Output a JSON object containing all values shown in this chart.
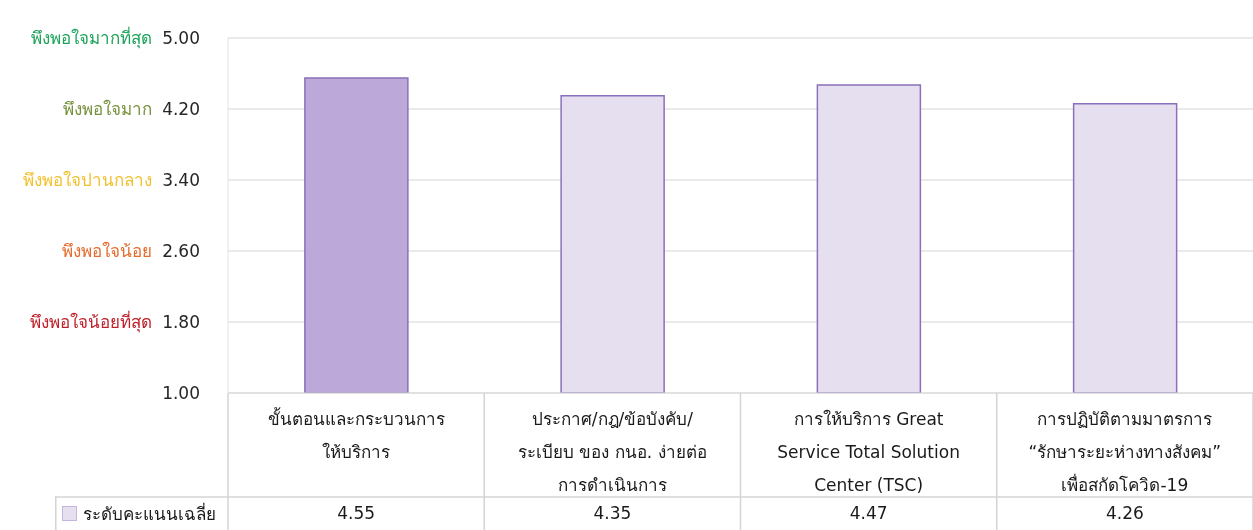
{
  "chart_data": {
    "type": "bar",
    "categories": [
      "ขั้นตอนและกระบวนการให้บริการ",
      "ประกาศ/กฎ/ข้อบังคับ/ระเบียบ ของ กนอ. ง่ายต่อการดำเนินการ",
      "การให้บริการ Great Service Total Solution Center (TSC)",
      "การปฏิบัติตามมาตรการ “รักษาระยะห่างทางสังคม” เพื่อสกัดโควิด-19"
    ],
    "series": [
      {
        "name": "ระดับคะแนนเฉลี่ย",
        "color": "#e6dff0",
        "colors": [
          "#bca9d9",
          "#e6dff0",
          "#e6dff0",
          "#e6dff0"
        ],
        "values": [
          4.55,
          4.35,
          4.47,
          4.26
        ]
      }
    ],
    "ylim": [
      1,
      5
    ],
    "yticks": [
      {
        "value": 1,
        "label": "1.00"
      },
      {
        "value": 1.8,
        "label": "1.80"
      },
      {
        "value": 2.6,
        "label": "2.60"
      },
      {
        "value": 3.4,
        "label": "3.40"
      },
      {
        "value": 4.2,
        "label": "4.20"
      },
      {
        "value": 5,
        "label": "5.00"
      }
    ],
    "annotations": [
      "พึงพอใจมากที่สุด",
      "พึงพอใจมาก",
      "พึงพอใจปานกลาง",
      "พึงพอใจน้อย",
      "พึงพอใจน้อยที่สุด"
    ],
    "grid": "y",
    "legend": "bottom",
    "data_labels": true
  }
}
